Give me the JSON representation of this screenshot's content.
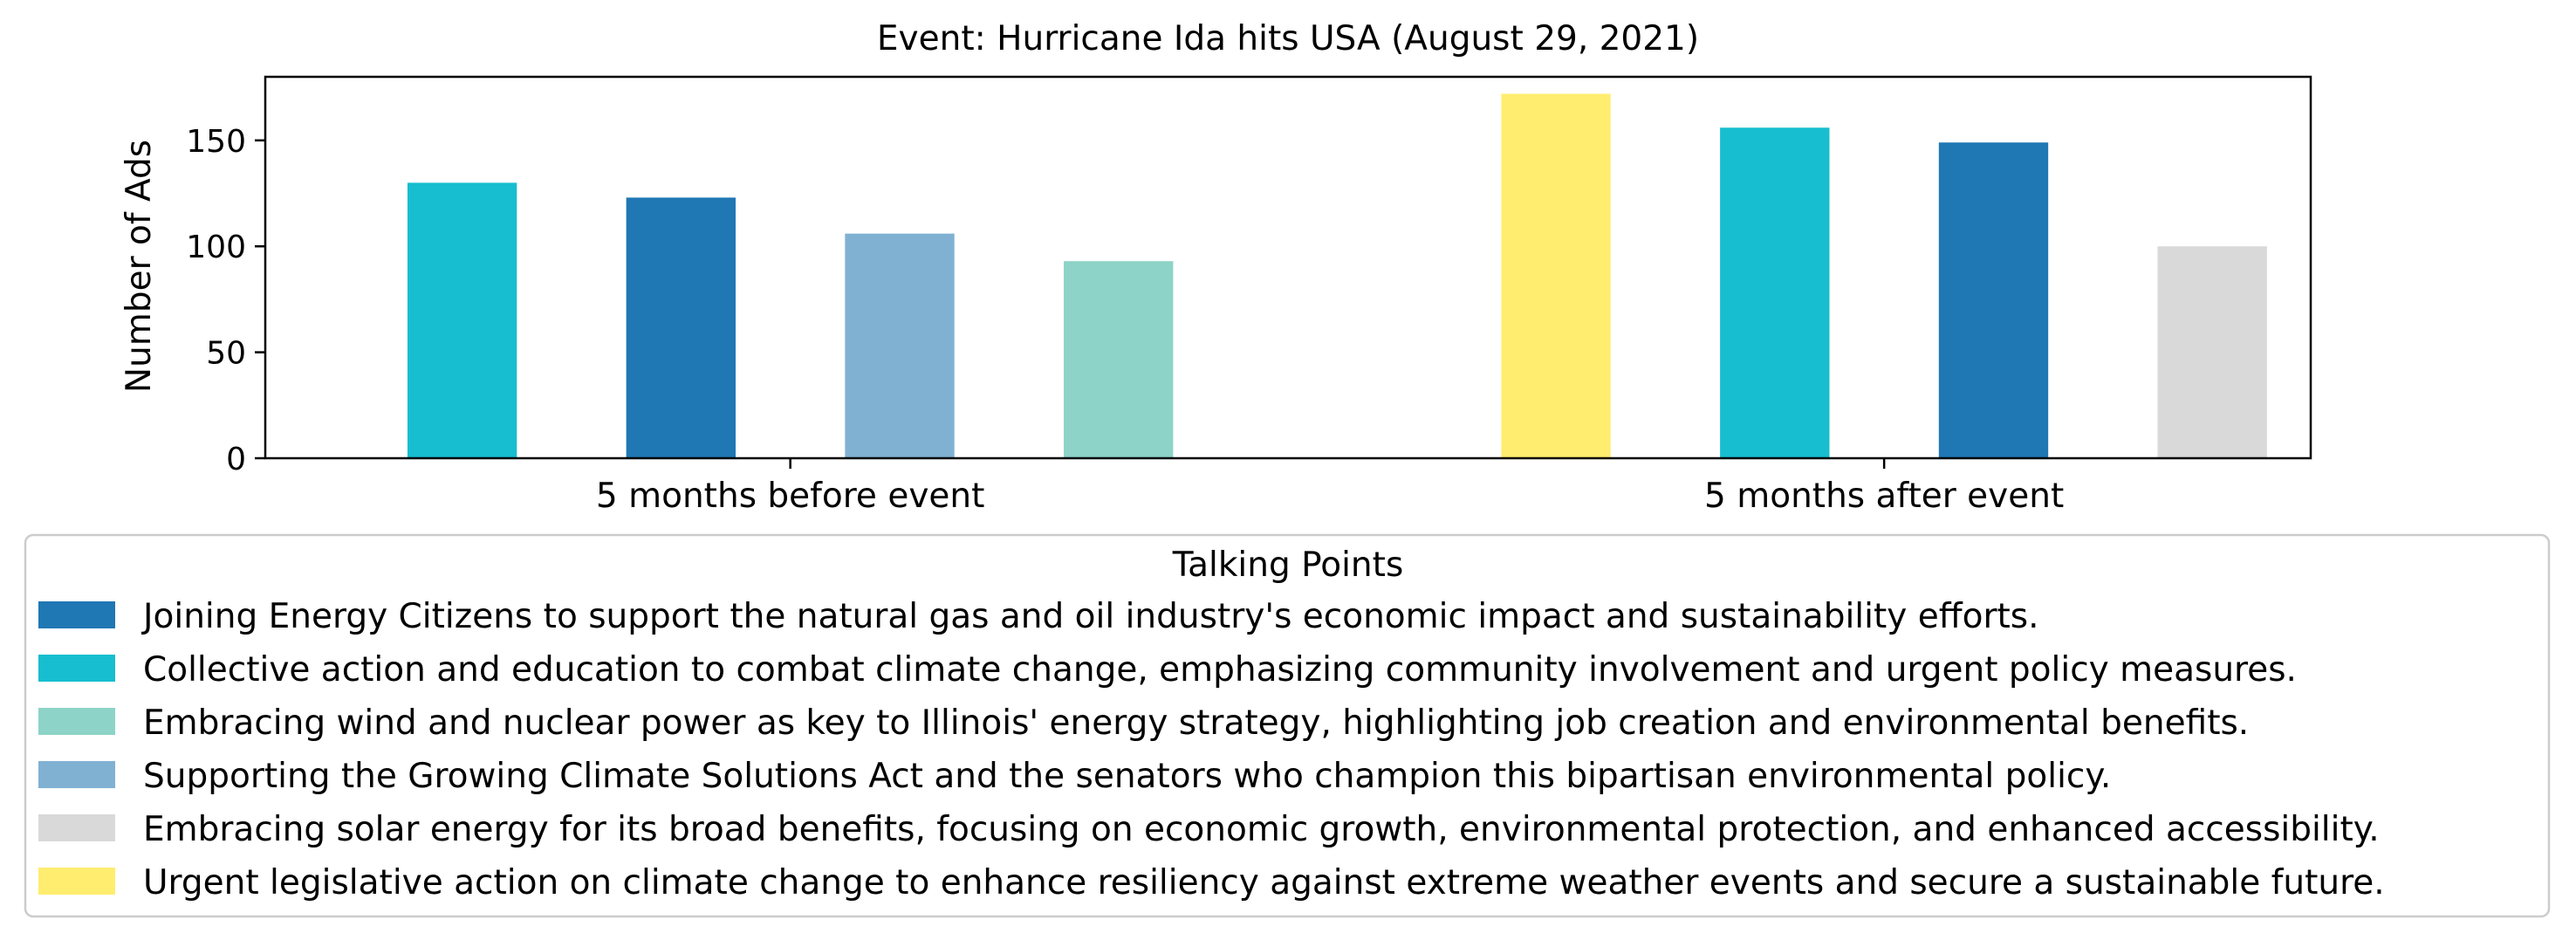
{
  "chart_data": {
    "type": "bar",
    "title": "Event: Hurricane Ida hits USA (August 29, 2021)",
    "xlabel": "",
    "ylabel": "Number of Ads",
    "ylim": [
      0,
      180
    ],
    "yticks": [
      0,
      50,
      100,
      150
    ],
    "grid": false,
    "legend_position": "bottom",
    "legend_title": "Talking Points",
    "categories": [
      "5 months before event",
      "5 months after event"
    ],
    "groups": [
      {
        "category": "5 months before event",
        "bars": [
          {
            "series": "Collective action and education to combat climate change, emphasizing community involvement and urgent policy measures.",
            "value": 130
          },
          {
            "series": "Joining Energy Citizens to support the natural gas and oil industry's economic impact and sustainability efforts.",
            "value": 123
          },
          {
            "series": "Supporting the Growing Climate Solutions Act and the senators who champion this bipartisan environmental policy.",
            "value": 106
          },
          {
            "series": "Embracing wind and nuclear power as key to Illinois' energy strategy, highlighting job creation and environmental benefits.",
            "value": 93
          }
        ]
      },
      {
        "category": "5 months after event",
        "bars": [
          {
            "series": "Urgent legislative action on climate change to enhance resiliency against extreme weather events and secure a sustainable future.",
            "value": 172
          },
          {
            "series": "Collective action and education to combat climate change, emphasizing community involvement and urgent policy measures.",
            "value": 156
          },
          {
            "series": "Joining Energy Citizens to support the natural gas and oil industry's economic impact and sustainability efforts.",
            "value": 149
          },
          {
            "series": "Embracing solar energy for its broad benefits, focusing on economic growth, environmental protection, and enhanced accessibility.",
            "value": 100
          }
        ]
      }
    ],
    "series": [
      {
        "name": "Joining Energy Citizens to support the natural gas and oil industry's economic impact and sustainability efforts.",
        "color": "#1f77b4"
      },
      {
        "name": "Collective action and education to combat climate change, emphasizing community involvement and urgent policy measures.",
        "color": "#17becf"
      },
      {
        "name": "Embracing wind and nuclear power as key to Illinois' energy strategy, highlighting job creation and environmental benefits.",
        "color": "#8dd3c7"
      },
      {
        "name": "Supporting the Growing Climate Solutions Act and the senators who champion this bipartisan environmental policy.",
        "color": "#80b1d3"
      },
      {
        "name": "Embracing solar energy for its broad benefits, focusing on economic growth, environmental protection, and enhanced accessibility.",
        "color": "#d9d9d9"
      },
      {
        "name": "Urgent legislative action on climate change to enhance resiliency against extreme weather events and secure a sustainable future.",
        "color": "#ffed6f"
      }
    ]
  }
}
